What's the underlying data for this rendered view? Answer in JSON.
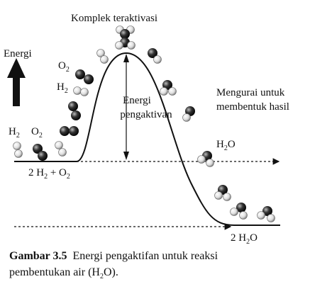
{
  "labels": {
    "activated_complex": "Komplek teraktivasi",
    "energy_axis": "Energi",
    "o2_mid": [
      "O",
      "2"
    ],
    "h2_mid": [
      "H",
      "2"
    ],
    "h2_left": [
      "H",
      "2"
    ],
    "o2_left": [
      "O",
      "2"
    ],
    "activation_energy": [
      "Energi",
      "pengaktivan"
    ],
    "decompose": [
      "Mengurai untuk",
      "membentuk hasil"
    ],
    "h2o": [
      "H",
      "2",
      "O"
    ],
    "reactants": [
      "2 H",
      "2",
      " + O",
      "2"
    ],
    "products": [
      "2 H",
      "2",
      "O"
    ]
  },
  "caption": {
    "label": "Gambar 3.5",
    "line1": "Energi pengaktifan untuk reaksi",
    "line2": [
      "pembentukan air (H",
      "2",
      "O)."
    ]
  }
}
